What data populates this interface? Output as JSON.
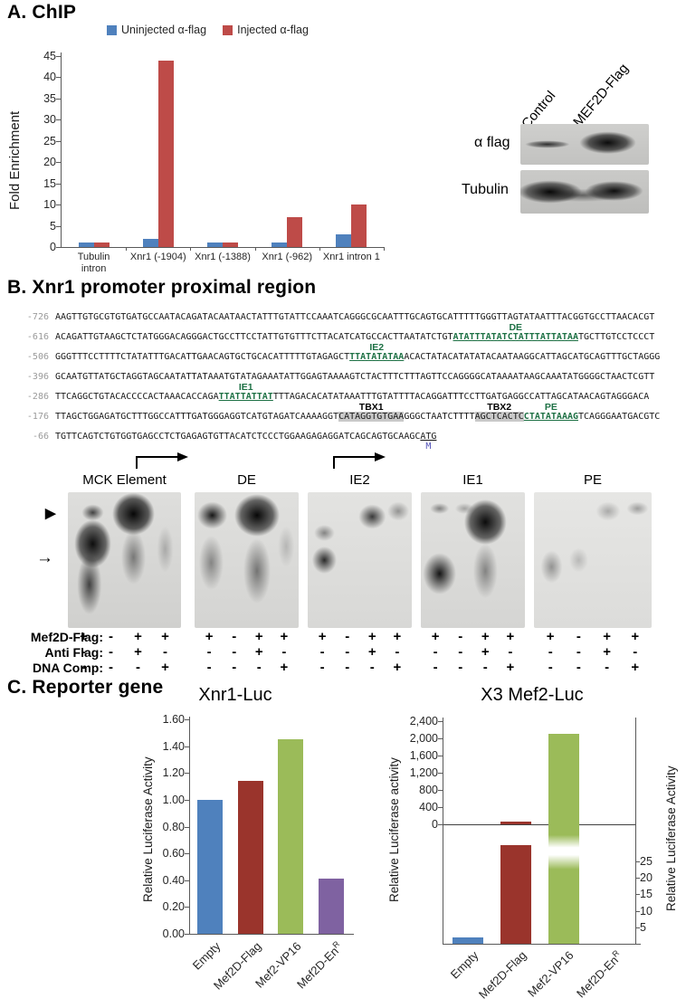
{
  "panels": {
    "a": {
      "heading": "A. ChIP"
    },
    "b": {
      "heading": "B. Xnr1 promoter proximal region"
    },
    "c": {
      "heading": "C. Reporter gene"
    }
  },
  "chart_data": [
    {
      "id": "chip",
      "type": "bar",
      "title": "ChIP",
      "ylabel": "Fold Enrichment",
      "ylim": [
        0,
        45
      ],
      "yticks": [
        0,
        5,
        10,
        15,
        20,
        25,
        30,
        35,
        40,
        45
      ],
      "categories": [
        "Tubulin intron",
        "Xnr1 (-1904)",
        "Xnr1 (-1388)",
        "Xnr1 (-962)",
        "Xnr1 intron 1"
      ],
      "series": [
        {
          "name": "Uninjected α-flag",
          "color": "#4F81BD",
          "values": [
            1,
            2,
            1,
            1,
            3
          ]
        },
        {
          "name": "Injected α-flag",
          "color": "#BE4B48",
          "values": [
            1,
            44,
            1,
            7,
            10
          ]
        }
      ],
      "legend_position": "top"
    },
    {
      "id": "xnr1-luc",
      "type": "bar",
      "title": "Xnr1-Luc",
      "ylabel": "Relative Luciferase Activity",
      "ylim": [
        0,
        1.6
      ],
      "yticks": [
        "0.00",
        "0.20",
        "0.40",
        "0.60",
        "0.80",
        "1.00",
        "1.20",
        "1.40",
        "1.60"
      ],
      "categories": [
        {
          "label": "Empty"
        },
        {
          "label": "Mef2D-Flag"
        },
        {
          "label": "Mef2-VP16"
        },
        {
          "label": "Mef2D-En",
          "sup": "R"
        }
      ],
      "values": [
        1.0,
        1.14,
        1.45,
        0.41
      ],
      "colors": [
        "#4F81BD",
        "#9A342C",
        "#9BBB59",
        "#7F62A1"
      ]
    },
    {
      "id": "x3-mef2-luc",
      "type": "bar-dual-axis",
      "title": "X3 Mef2-Luc",
      "left_axis": {
        "label": "Relative Luciferase activity",
        "ticks": [
          "0",
          "400",
          "800",
          "1,200",
          "1,600",
          "2,000",
          "2,400"
        ],
        "lim": [
          0,
          2400
        ]
      },
      "right_axis": {
        "label": "Relative Luciferase Activity",
        "ticks": [
          "5",
          "10",
          "15",
          "20",
          "25"
        ],
        "lim": [
          0,
          25
        ]
      },
      "categories": [
        {
          "label": "Empty"
        },
        {
          "label": "Mef2D-Flag"
        },
        {
          "label": "Mef2-VP16"
        },
        {
          "label": "Mef2D-En",
          "sup": "R"
        }
      ],
      "bars": [
        {
          "category": "Empty",
          "axis": "right",
          "value": 2,
          "color": "#4F81BD"
        },
        {
          "category": "Mef2D-Flag",
          "axis": "right",
          "value": 30,
          "color": "#9A342C"
        },
        {
          "category": "Mef2-VP16",
          "axis": "left",
          "value": 2100,
          "color": "#9BBB59"
        },
        {
          "category": "Mef2D-EnR",
          "axis": "right",
          "value": 0,
          "color": "#9BBB59"
        }
      ]
    }
  ],
  "western": {
    "col_labels": [
      "Control",
      "MEF2D-Flag"
    ],
    "row_labels": [
      "α flag",
      "Tubulin"
    ]
  },
  "sequence": {
    "lines": [
      {
        "pos": "-726",
        "segments": [
          {
            "t": "AAGTTGTGCGTGTGATGCCAATACAGATACAATAACTATTTGTATTCCAAATCAGGGCGCAATTTGCAGTGCATTTTTGGGTTAGTATAATTTACGGTGCCTTAACACGT"
          }
        ]
      },
      {
        "pos": "-616",
        "segments": [
          {
            "t": "ACAGATTGTAAGCTCTATGGGACAGGGACTGCCTTCCTATTGTGTTTCTTACATCATGCCACTTAATATCTGT"
          },
          {
            "t": "ATATTTATATCTATTTATTATAA",
            "style": "motif-green",
            "label": "DE"
          },
          {
            "t": "TGCTTGTCCTCCCT"
          }
        ]
      },
      {
        "pos": "-506",
        "segments": [
          {
            "t": "GGGTTTCCTTTTCTATATTTGACATTGAACAGTGCTGCACATTTTTGTAGAGCT"
          },
          {
            "t": "TTATATATAA",
            "style": "motif-green",
            "label": "IE2"
          },
          {
            "t": "ACACTATACATATATACAATAAGGCATTAGCATGCAGTTTGCTAGGG"
          }
        ]
      },
      {
        "pos": "-396",
        "segments": [
          {
            "t": "GCAATGTTATGCTAGGTAGCAATATTATAAATGTATAGAAATATTGGAGTAAAAGTCTACTTTCTTTAGTTCCAGGGGCATAAAATAAGCAAATATGGGGCTAACTCGTT"
          }
        ]
      },
      {
        "pos": "-286",
        "segments": [
          {
            "t": "TTCAGGCTGTACACCCCACTAAACACCAGA"
          },
          {
            "t": "TTATTATTAT",
            "style": "motif-green",
            "label": "IE1"
          },
          {
            "t": "TTTAGACACATATAAATTTGTATTTTACAGGATTTCCTTGATGAGGCCATTAGCATAACAGTAGGGACA"
          }
        ]
      },
      {
        "pos": "-176",
        "segments": [
          {
            "t": "TTAGCTGGAGATGCTTTGGCCATTTGATGGGAGGTCATGTAGATCAAAAGGT"
          },
          {
            "t": "CATAGGTGTGAA",
            "style": "motif-gray",
            "label": "TBX1",
            "label_color": "black"
          },
          {
            "t": "GGGCTAATCTTTT"
          },
          {
            "t": "AGCTCACTC",
            "style": "motif-gray",
            "label": "TBX2",
            "label_color": "black"
          },
          {
            "t": "CTATATAAAG",
            "style": "motif-green",
            "label": "PE"
          },
          {
            "t": "TCAGGGAATGACGTC"
          }
        ]
      },
      {
        "pos": "-66",
        "segments": [
          {
            "t": "TGTTCAGTCTGTGGTGAGCCTCTGAGAGTGTTACATCTCCCTGGAAGAGAGGATCAGCAGTGCAAGC"
          },
          {
            "t": "ATG",
            "style": "motif-underline",
            "sub": "M"
          }
        ]
      }
    ]
  },
  "gels": {
    "panel_labels": [
      "MCK Element",
      "DE",
      "IE2",
      "IE1",
      "PE"
    ],
    "rows": [
      {
        "label": "Mef2D-Flag:",
        "pattern": [
          "+",
          "-",
          "+",
          "+"
        ]
      },
      {
        "label": "Anti Flag:",
        "pattern": [
          "-",
          "-",
          "+",
          "-"
        ]
      },
      {
        "label": "DNA Comp:",
        "pattern": [
          "-",
          "-",
          "-",
          "+"
        ]
      }
    ],
    "markers": {
      "arrowhead": "▶",
      "arrow": "→"
    }
  }
}
